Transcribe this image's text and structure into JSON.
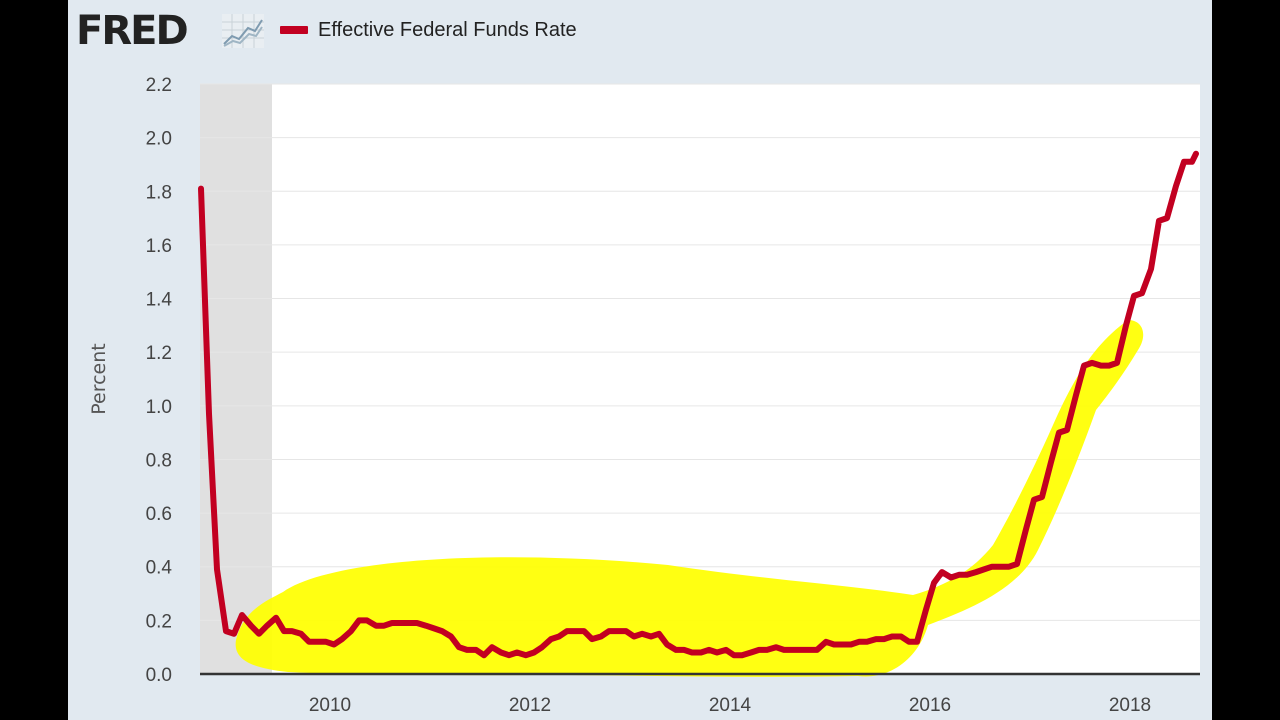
{
  "brand": {
    "logo_text": "FRED",
    "logo_icon": "line-chart-icon"
  },
  "legend": {
    "label": "Effective Federal Funds Rate",
    "color": "#c20021"
  },
  "chart_data": {
    "type": "line",
    "title": "",
    "xlabel": "",
    "ylabel": "Percent",
    "xlim": [
      2008.7,
      2018.7
    ],
    "ylim": [
      0.0,
      2.2
    ],
    "yticks": [
      0.0,
      0.2,
      0.4,
      0.6,
      0.8,
      1.0,
      1.2,
      1.4,
      1.6,
      1.8,
      2.0,
      2.2
    ],
    "ytick_labels": [
      "0.0",
      "0.2",
      "0.4",
      "0.6",
      "0.8",
      "1.0",
      "1.2",
      "1.4",
      "1.6",
      "1.8",
      "2.0",
      "2.2"
    ],
    "xticks": [
      2010,
      2012,
      2014,
      2016,
      2018
    ],
    "xtick_labels": [
      "2010",
      "2012",
      "2014",
      "2016",
      "2018"
    ],
    "grid": true,
    "recession_shading": [
      2008.7,
      2009.42
    ],
    "series": [
      {
        "name": "Effective Federal Funds Rate",
        "color": "#c20021",
        "x": [
          2008.71,
          2008.79,
          2008.87,
          2008.96,
          2009.04,
          2009.12,
          2009.21,
          2009.29,
          2009.37,
          2009.46,
          2009.54,
          2009.62,
          2009.71,
          2009.79,
          2009.87,
          2009.96,
          2010.04,
          2010.12,
          2010.21,
          2010.29,
          2010.37,
          2010.46,
          2010.54,
          2010.62,
          2010.71,
          2010.79,
          2010.87,
          2010.96,
          2011.04,
          2011.12,
          2011.21,
          2011.29,
          2011.37,
          2011.46,
          2011.54,
          2011.62,
          2011.71,
          2011.79,
          2011.87,
          2011.96,
          2012.04,
          2012.12,
          2012.21,
          2012.29,
          2012.37,
          2012.46,
          2012.54,
          2012.62,
          2012.71,
          2012.79,
          2012.87,
          2012.96,
          2013.04,
          2013.12,
          2013.21,
          2013.29,
          2013.37,
          2013.46,
          2013.54,
          2013.62,
          2013.71,
          2013.79,
          2013.87,
          2013.96,
          2014.04,
          2014.12,
          2014.21,
          2014.29,
          2014.37,
          2014.46,
          2014.54,
          2014.62,
          2014.71,
          2014.79,
          2014.87,
          2014.96,
          2015.04,
          2015.12,
          2015.21,
          2015.29,
          2015.37,
          2015.46,
          2015.54,
          2015.62,
          2015.71,
          2015.79,
          2015.87,
          2015.96,
          2016.04,
          2016.12,
          2016.21,
          2016.29,
          2016.37,
          2016.46,
          2016.54,
          2016.62,
          2016.71,
          2016.79,
          2016.87,
          2016.96,
          2017.04,
          2017.12,
          2017.21,
          2017.29,
          2017.37,
          2017.46,
          2017.54,
          2017.62,
          2017.71,
          2017.79,
          2017.87,
          2017.96,
          2018.04,
          2018.12,
          2018.21,
          2018.29,
          2018.37,
          2018.46,
          2018.54,
          2018.62,
          2018.66
        ],
        "values": [
          1.81,
          0.97,
          0.39,
          0.16,
          0.15,
          0.22,
          0.18,
          0.15,
          0.18,
          0.21,
          0.16,
          0.16,
          0.15,
          0.12,
          0.12,
          0.12,
          0.11,
          0.13,
          0.16,
          0.2,
          0.2,
          0.18,
          0.18,
          0.19,
          0.19,
          0.19,
          0.19,
          0.18,
          0.17,
          0.16,
          0.14,
          0.1,
          0.09,
          0.09,
          0.07,
          0.1,
          0.08,
          0.07,
          0.08,
          0.07,
          0.08,
          0.1,
          0.13,
          0.14,
          0.16,
          0.16,
          0.16,
          0.13,
          0.14,
          0.16,
          0.16,
          0.16,
          0.14,
          0.15,
          0.14,
          0.15,
          0.11,
          0.09,
          0.09,
          0.08,
          0.08,
          0.09,
          0.08,
          0.09,
          0.07,
          0.07,
          0.08,
          0.09,
          0.09,
          0.1,
          0.09,
          0.09,
          0.09,
          0.09,
          0.09,
          0.12,
          0.11,
          0.11,
          0.11,
          0.12,
          0.12,
          0.13,
          0.13,
          0.14,
          0.14,
          0.12,
          0.12,
          0.24,
          0.34,
          0.38,
          0.36,
          0.37,
          0.37,
          0.38,
          0.39,
          0.4,
          0.4,
          0.4,
          0.41,
          0.54,
          0.65,
          0.66,
          0.79,
          0.9,
          0.91,
          1.04,
          1.15,
          1.16,
          1.15,
          1.15,
          1.16,
          1.3,
          1.41,
          1.42,
          1.51,
          1.69,
          1.7,
          1.82,
          1.91,
          1.91,
          1.94
        ]
      }
    ]
  }
}
